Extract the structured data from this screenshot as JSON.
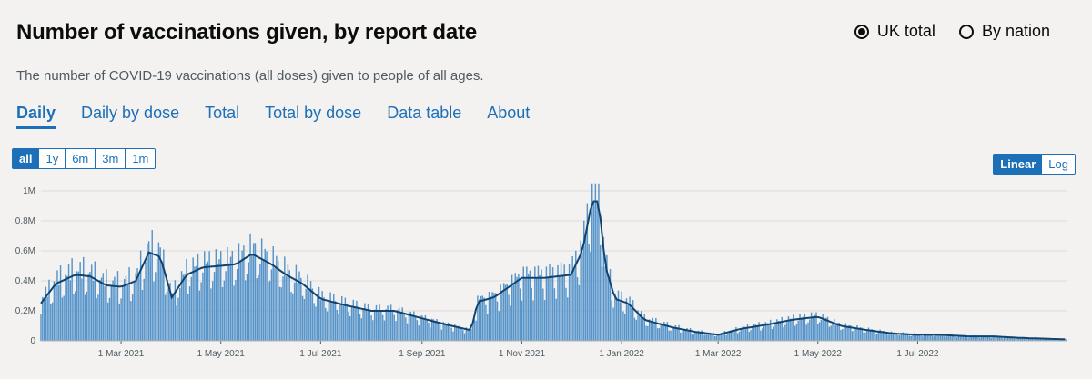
{
  "header": {
    "title": "Number of vaccinations given, by report date",
    "subtitle": "The number of COVID-19 vaccinations (all doses) given to people of all ages."
  },
  "radios": [
    {
      "label": "UK total",
      "selected": true
    },
    {
      "label": "By nation",
      "selected": false
    }
  ],
  "tabs": [
    {
      "label": "Daily",
      "active": true
    },
    {
      "label": "Daily by dose",
      "active": false
    },
    {
      "label": "Total",
      "active": false
    },
    {
      "label": "Total by dose",
      "active": false
    },
    {
      "label": "Data table",
      "active": false
    },
    {
      "label": "About",
      "active": false
    }
  ],
  "range_buttons": [
    {
      "label": "all",
      "active": true
    },
    {
      "label": "1y",
      "active": false
    },
    {
      "label": "6m",
      "active": false
    },
    {
      "label": "3m",
      "active": false
    },
    {
      "label": "1m",
      "active": false
    }
  ],
  "scale_buttons": [
    {
      "label": "Linear",
      "active": true
    },
    {
      "label": "Log",
      "active": false
    }
  ],
  "colors": {
    "bar": "#5694ca",
    "line": "#12436d",
    "accent": "#1d70b8"
  },
  "chart_data": {
    "type": "bar",
    "overlay": "line (7-day average)",
    "title": "",
    "xlabel": "",
    "ylabel": "",
    "ylim": [
      0,
      1000000
    ],
    "xlim": [
      "2021-01-11",
      "2022-09-30"
    ],
    "grid": true,
    "y_ticks": [
      {
        "value": 0,
        "label": "0"
      },
      {
        "value": 200000,
        "label": "0.2M"
      },
      {
        "value": 400000,
        "label": "0.4M"
      },
      {
        "value": 600000,
        "label": "0.6M"
      },
      {
        "value": 800000,
        "label": "0.8M"
      },
      {
        "value": 1000000,
        "label": "1M"
      }
    ],
    "x_ticks": [
      {
        "date": "2021-03-01",
        "label": "1 Mar 2021"
      },
      {
        "date": "2021-05-01",
        "label": "1 May 2021"
      },
      {
        "date": "2021-07-01",
        "label": "1 Jul 2021"
      },
      {
        "date": "2021-09-01",
        "label": "1 Sep 2021"
      },
      {
        "date": "2021-11-01",
        "label": "1 Nov 2021"
      },
      {
        "date": "2022-01-01",
        "label": "1 Jan 2022"
      },
      {
        "date": "2022-03-01",
        "label": "1 Mar 2022"
      },
      {
        "date": "2022-05-01",
        "label": "1 May 2022"
      },
      {
        "date": "2022-07-01",
        "label": "1 Jul 2022"
      }
    ],
    "series": [
      {
        "x": [
          "2021-01-11",
          "2021-01-20",
          "2021-02-01",
          "2021-02-10",
          "2021-02-20",
          "2021-03-01",
          "2021-03-10",
          "2021-03-18",
          "2021-03-25",
          "2021-04-01",
          "2021-04-10",
          "2021-04-20",
          "2021-05-01",
          "2021-05-10",
          "2021-05-20",
          "2021-06-01",
          "2021-06-10",
          "2021-06-20",
          "2021-07-01",
          "2021-07-15",
          "2021-08-01",
          "2021-08-15",
          "2021-09-01",
          "2021-09-15",
          "2021-10-01",
          "2021-10-05",
          "2021-10-15",
          "2021-11-01",
          "2021-11-15",
          "2021-12-01",
          "2021-12-08",
          "2021-12-14",
          "2021-12-18",
          "2021-12-22",
          "2021-12-28",
          "2022-01-05",
          "2022-01-15",
          "2022-02-01",
          "2022-02-15",
          "2022-03-01",
          "2022-03-15",
          "2022-04-01",
          "2022-04-15",
          "2022-05-01",
          "2022-05-15",
          "2022-06-01",
          "2022-06-15",
          "2022-07-01",
          "2022-07-15",
          "2022-08-01",
          "2022-08-15",
          "2022-09-01",
          "2022-09-15",
          "2022-09-30"
        ],
        "values": [
          250000,
          380000,
          440000,
          430000,
          370000,
          360000,
          400000,
          590000,
          560000,
          290000,
          440000,
          490000,
          500000,
          510000,
          580000,
          510000,
          440000,
          380000,
          280000,
          240000,
          200000,
          200000,
          150000,
          110000,
          70000,
          260000,
          290000,
          420000,
          420000,
          440000,
          600000,
          930000,
          930000,
          500000,
          280000,
          250000,
          140000,
          90000,
          60000,
          40000,
          80000,
          110000,
          140000,
          160000,
          100000,
          70000,
          50000,
          40000,
          40000,
          30000,
          30000,
          20000,
          15000,
          10000
        ]
      }
    ]
  }
}
